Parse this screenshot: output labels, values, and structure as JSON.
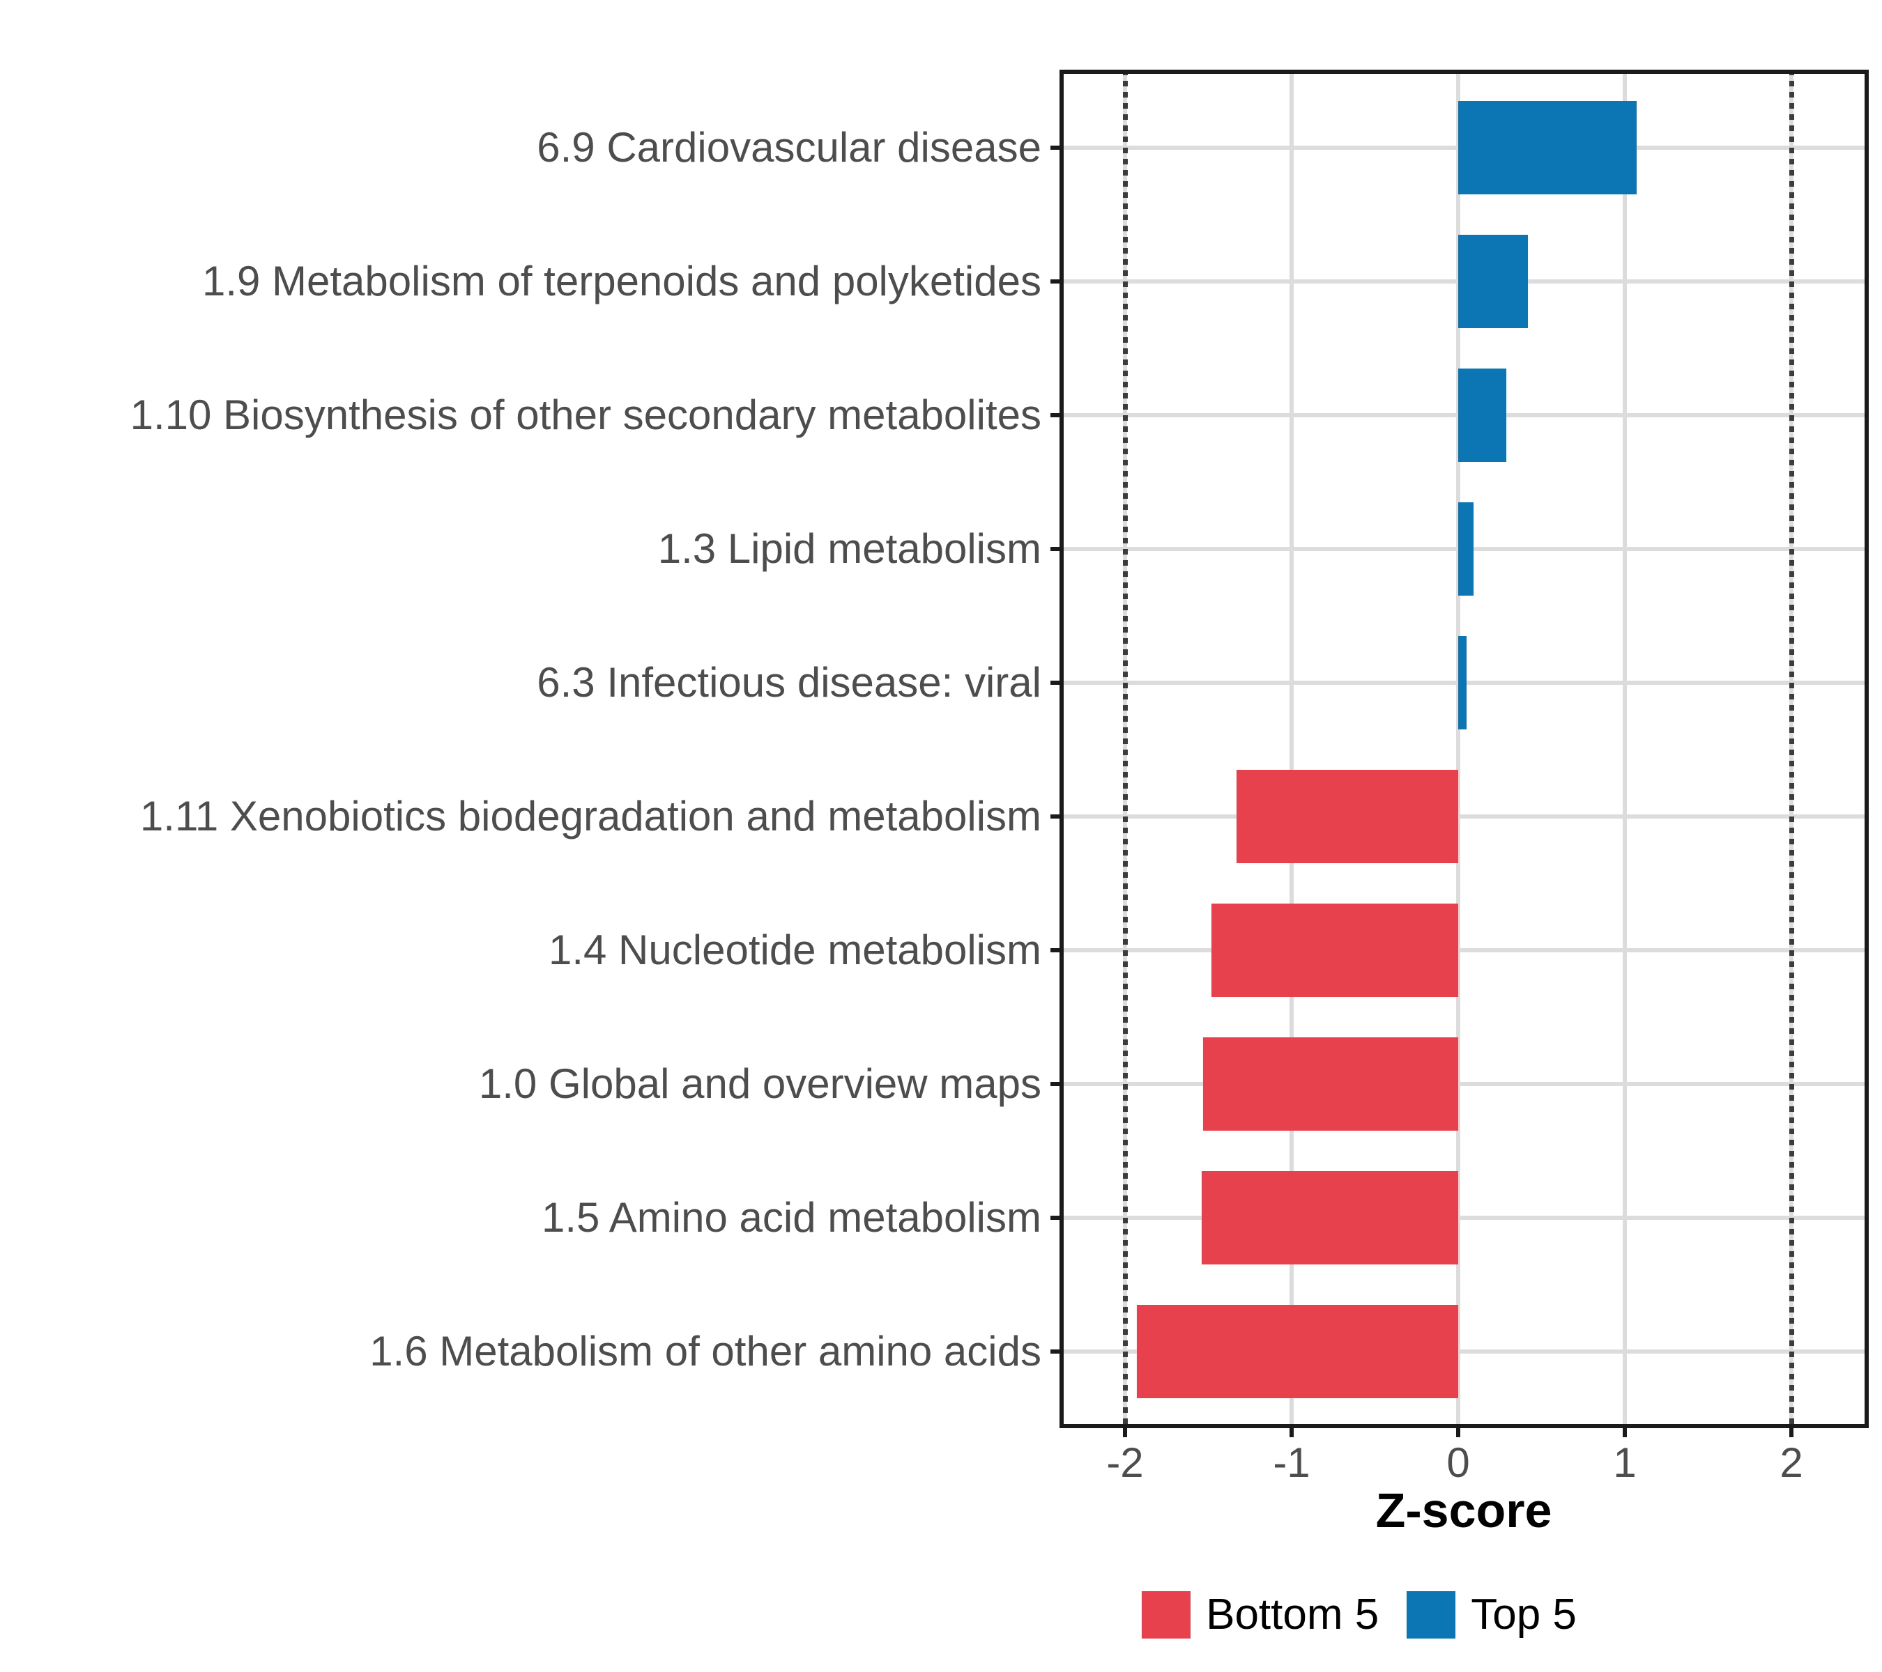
{
  "chart_data": {
    "type": "bar",
    "orientation": "horizontal",
    "title": "",
    "xlabel": "Z-score",
    "ylabel": "",
    "x_tick_labels": [
      "-2",
      "-1",
      "0",
      "1",
      "2"
    ],
    "x_tick_values": [
      -2,
      -1,
      0,
      1,
      2
    ],
    "xlim": [
      -2.4,
      2.47
    ],
    "grid": true,
    "legend_position": "bottom",
    "categories": [
      "6.9 Cardiovascular disease",
      "1.9 Metabolism of terpenoids and polyketides",
      "1.10 Biosynthesis of other secondary metabolites",
      "1.3 Lipid metabolism",
      "6.3 Infectious disease: viral",
      "1.11 Xenobiotics biodegradation and metabolism",
      "1.4 Nucleotide metabolism",
      "1.0 Global and overview maps",
      "1.5 Amino acid metabolism",
      "1.6 Metabolism of other amino acids"
    ],
    "values": [
      1.07,
      0.42,
      0.29,
      0.09,
      0.05,
      -1.33,
      -1.48,
      -1.53,
      -1.54,
      -1.93
    ],
    "groups": [
      "Top 5",
      "Top 5",
      "Top 5",
      "Top 5",
      "Top 5",
      "Bottom 5",
      "Bottom 5",
      "Bottom 5",
      "Bottom 5",
      "Bottom 5"
    ],
    "legend": [
      {
        "label": "Bottom 5",
        "color": "#E7414E"
      },
      {
        "label": "Top 5",
        "color": "#0B76B3"
      }
    ],
    "reference_lines": {
      "values": [
        -2,
        2
      ],
      "style": "dotted",
      "color": "#3C3C3C"
    },
    "colors": {
      "bottom5": "#E7414E",
      "top5": "#0B76B3",
      "gridline": "#DCDCDC",
      "axis_text": "#4D4D4D",
      "panel_border": "#1A1A1A",
      "background": "#FFFFFF"
    }
  }
}
